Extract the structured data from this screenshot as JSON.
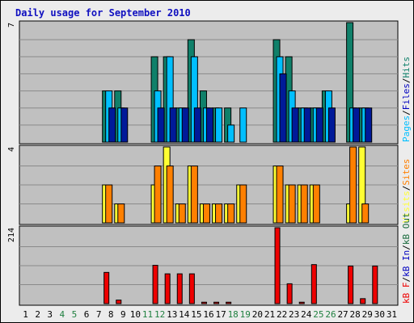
{
  "page_title": "Daily usage for September 2010",
  "colors": {
    "background": "#ececec",
    "panel": "#c0c0c0",
    "title": "#1010c0",
    "weekday": "#000000",
    "weekend": "#208040",
    "hits": "#10806a",
    "files": "#00bfff",
    "pages": "#001a99",
    "visits": "#ffff33",
    "sites": "#ff8000",
    "kb_out": "#1a6b3d",
    "kb_in": "#0000c0",
    "kb_f": "#ee0000"
  },
  "chart_data": [
    {
      "type": "bar",
      "panel": "top",
      "ymax_label": "7",
      "ylim": [
        0,
        7
      ],
      "grid": true,
      "legend": [
        {
          "text": "Pages",
          "color": "#00bfff"
        },
        {
          "text": "/",
          "color": "#000000"
        },
        {
          "text": "Files",
          "color": "#0000c0"
        },
        {
          "text": "/",
          "color": "#000000"
        },
        {
          "text": "Hits",
          "color": "#10806a"
        }
      ],
      "series": [
        {
          "name": "Hits",
          "color": "#10806a",
          "values": [
            0,
            0,
            0,
            0,
            0,
            0,
            0,
            3,
            3,
            0,
            0,
            5,
            5,
            2,
            6,
            3,
            2,
            2,
            0,
            0,
            0,
            6,
            5,
            2,
            2,
            3,
            0,
            7,
            2,
            0,
            0
          ]
        },
        {
          "name": "Files",
          "color": "#00bfff",
          "values": [
            0,
            0,
            0,
            0,
            0,
            0,
            0,
            3,
            2,
            0,
            0,
            3,
            5,
            2,
            5,
            2,
            2,
            1,
            2,
            0,
            0,
            5,
            3,
            2,
            2,
            3,
            0,
            2,
            2,
            0,
            0
          ]
        },
        {
          "name": "Pages",
          "color": "#001a99",
          "values": [
            0,
            0,
            0,
            0,
            0,
            0,
            0,
            2,
            2,
            0,
            0,
            2,
            2,
            2,
            2,
            2,
            0,
            0,
            0,
            0,
            0,
            4,
            2,
            2,
            2,
            2,
            0,
            2,
            2,
            0,
            0
          ]
        }
      ]
    },
    {
      "type": "bar",
      "panel": "middle",
      "ymax_label": "4",
      "ylim": [
        0,
        4
      ],
      "grid": true,
      "legend": [
        {
          "text": "Visits",
          "color": "#ffff33"
        },
        {
          "text": "/",
          "color": "#000000"
        },
        {
          "text": "Sites",
          "color": "#ff8000"
        }
      ],
      "series": [
        {
          "name": "Visits",
          "color": "#ffff33",
          "values": [
            0,
            0,
            0,
            0,
            0,
            0,
            0,
            2,
            1,
            0,
            0,
            2,
            4,
            1,
            3,
            1,
            1,
            1,
            2,
            0,
            0,
            3,
            2,
            2,
            2,
            0,
            0,
            1,
            4,
            0,
            0
          ]
        },
        {
          "name": "Sites",
          "color": "#ff8000",
          "values": [
            0,
            0,
            0,
            0,
            0,
            0,
            0,
            2,
            1,
            0,
            0,
            3,
            3,
            1,
            3,
            1,
            1,
            1,
            2,
            0,
            0,
            3,
            2,
            2,
            2,
            0,
            0,
            4,
            1,
            0,
            0
          ]
        }
      ]
    },
    {
      "type": "bar",
      "panel": "bottom",
      "ymax_label": "214",
      "ylim": [
        0,
        214
      ],
      "grid": true,
      "legend": [
        {
          "text": "kB F",
          "color": "#ee0000"
        },
        {
          "text": "/",
          "color": "#000000"
        },
        {
          "text": "kB In",
          "color": "#0000c0"
        },
        {
          "text": "/",
          "color": "#000000"
        },
        {
          "text": "kB Out",
          "color": "#1a6b3d"
        }
      ],
      "series": [
        {
          "name": "kB F",
          "color": "#ee0000",
          "values": [
            0,
            0,
            0,
            0,
            0,
            0,
            0,
            88,
            10,
            0,
            0,
            108,
            84,
            84,
            84,
            4,
            4,
            4,
            0,
            0,
            0,
            214,
            56,
            4,
            110,
            0,
            0,
            106,
            14,
            106,
            0
          ]
        }
      ]
    }
  ],
  "days": [
    {
      "label": "1",
      "weekend": false
    },
    {
      "label": "2",
      "weekend": false
    },
    {
      "label": "3",
      "weekend": false
    },
    {
      "label": "4",
      "weekend": true
    },
    {
      "label": "5",
      "weekend": true
    },
    {
      "label": "6",
      "weekend": false
    },
    {
      "label": "7",
      "weekend": false
    },
    {
      "label": "8",
      "weekend": false
    },
    {
      "label": "9",
      "weekend": false
    },
    {
      "label": "10",
      "weekend": false
    },
    {
      "label": "11",
      "weekend": true
    },
    {
      "label": "12",
      "weekend": true
    },
    {
      "label": "13",
      "weekend": false
    },
    {
      "label": "14",
      "weekend": false
    },
    {
      "label": "15",
      "weekend": false
    },
    {
      "label": "16",
      "weekend": false
    },
    {
      "label": "17",
      "weekend": false
    },
    {
      "label": "18",
      "weekend": true
    },
    {
      "label": "19",
      "weekend": true
    },
    {
      "label": "20",
      "weekend": false
    },
    {
      "label": "21",
      "weekend": false
    },
    {
      "label": "22",
      "weekend": false
    },
    {
      "label": "23",
      "weekend": false
    },
    {
      "label": "24",
      "weekend": false
    },
    {
      "label": "25",
      "weekend": true
    },
    {
      "label": "26",
      "weekend": true
    },
    {
      "label": "27",
      "weekend": false
    },
    {
      "label": "28",
      "weekend": false
    },
    {
      "label": "29",
      "weekend": false
    },
    {
      "label": "30",
      "weekend": false
    },
    {
      "label": "31",
      "weekend": false
    }
  ]
}
